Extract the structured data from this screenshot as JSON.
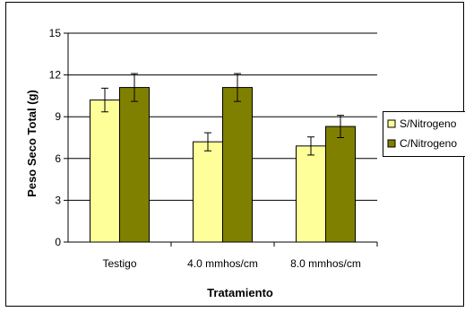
{
  "chart_data": {
    "type": "bar",
    "categories": [
      "Testigo",
      "4.0 mmhos/cm",
      "8.0 mmhos/cm"
    ],
    "series": [
      {
        "name": "S/Nitrogeno",
        "values": [
          10.2,
          7.2,
          6.9
        ],
        "errors": [
          0.85,
          0.65,
          0.65
        ],
        "color": "#FFFF99"
      },
      {
        "name": "C/Nitrogeno",
        "values": [
          11.1,
          11.1,
          8.3
        ],
        "errors": [
          1.0,
          1.0,
          0.8
        ],
        "color": "#808000"
      }
    ],
    "xlabel": "Tratamiento",
    "ylabel": "Peso Seco Total (g)",
    "ylim": [
      0,
      15
    ],
    "yticks": [
      "0",
      "3",
      "6",
      "9",
      "12",
      "15"
    ],
    "grid": true,
    "legend": "right"
  }
}
